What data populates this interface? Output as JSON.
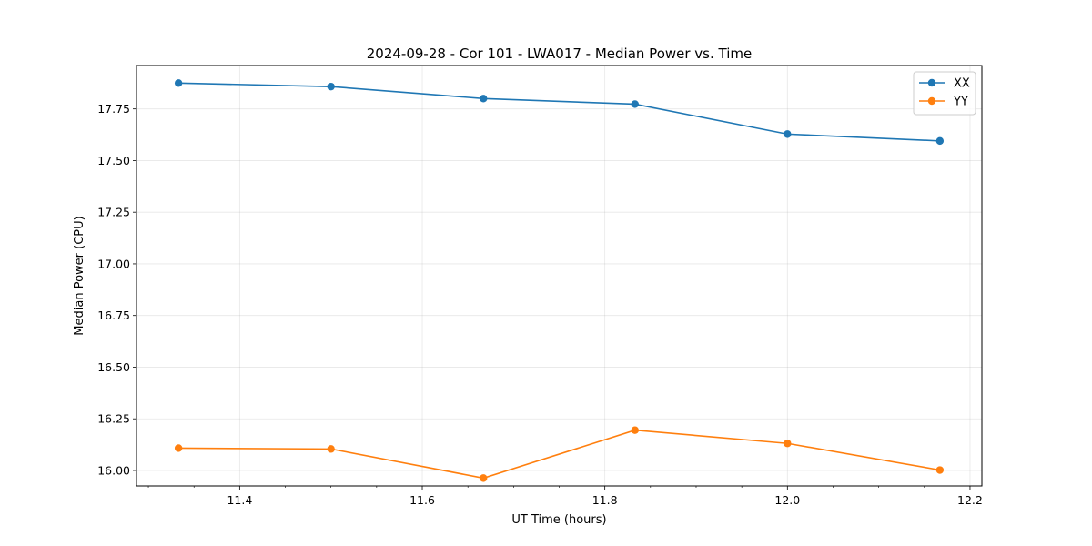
{
  "chart_data": {
    "type": "line",
    "title": "2024-09-28 - Cor 101 - LWA017 - Median Power vs. Time",
    "xlabel": "UT Time (hours)",
    "ylabel": "Median Power (CPU)",
    "x": [
      11.333,
      11.5,
      11.667,
      11.833,
      12.0,
      12.167
    ],
    "xlim": [
      11.287,
      12.213
    ],
    "ylim": [
      15.925,
      17.96
    ],
    "xticks": [
      11.4,
      11.6,
      11.8,
      12.0,
      12.2
    ],
    "xtick_labels": [
      "11.4",
      "11.6",
      "11.8",
      "12.0",
      "12.2"
    ],
    "yticks": [
      16.0,
      16.25,
      16.5,
      16.75,
      17.0,
      17.25,
      17.5,
      17.75
    ],
    "ytick_labels": [
      "16.00",
      "16.25",
      "16.50",
      "16.75",
      "17.00",
      "17.25",
      "17.50",
      "17.75"
    ],
    "grid": true,
    "legend_position": "top-right",
    "series": [
      {
        "name": "XX",
        "color": "#1f77b4",
        "marker": "circle",
        "values": [
          17.875,
          17.858,
          17.8,
          17.773,
          17.628,
          17.595
        ]
      },
      {
        "name": "YY",
        "color": "#ff7f0e",
        "marker": "circle",
        "values": [
          16.108,
          16.104,
          15.963,
          16.195,
          16.131,
          16.002
        ]
      }
    ]
  }
}
